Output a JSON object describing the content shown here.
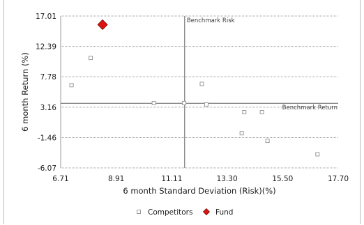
{
  "chart_data": {
    "type": "scatter",
    "title": "",
    "xlabel": "6 month Standard Deviation (Risk)(%)",
    "ylabel": "6 month Return (%)",
    "xlim": [
      6.71,
      17.7
    ],
    "ylim": [
      -6.07,
      17.01
    ],
    "x_ticks": [
      "6.71",
      "8.91",
      "11.11",
      "13.30",
      "15.50",
      "17.70"
    ],
    "y_ticks": [
      "17.01",
      "12.39",
      "7.78",
      "3.16",
      "-1.46",
      "-6.07"
    ],
    "x_tick_values": [
      6.71,
      8.91,
      11.11,
      13.3,
      15.5,
      17.7
    ],
    "y_tick_values": [
      17.01,
      12.39,
      7.78,
      3.16,
      -1.46,
      -6.07
    ],
    "grid": "horizontal dotted",
    "reference_lines": {
      "benchmark_risk": {
        "label": "Benchmark Risk",
        "x": 11.62
      },
      "benchmark_return": {
        "label": "Benchmark Return",
        "y": 3.75
      }
    },
    "series": [
      {
        "name": "Competitors",
        "marker": "square",
        "color": "#9a9a9a",
        "points": [
          {
            "x": 7.9,
            "y": 10.65
          },
          {
            "x": 7.14,
            "y": 6.5
          },
          {
            "x": 10.4,
            "y": 3.78
          },
          {
            "x": 11.6,
            "y": 3.78
          },
          {
            "x": 12.3,
            "y": 6.7
          },
          {
            "x": 12.48,
            "y": 3.58
          },
          {
            "x": 13.98,
            "y": 2.4
          },
          {
            "x": 14.68,
            "y": 2.4
          },
          {
            "x": 13.88,
            "y": -0.8
          },
          {
            "x": 14.9,
            "y": -1.95
          },
          {
            "x": 16.88,
            "y": -4.0
          }
        ]
      },
      {
        "name": "Fund",
        "marker": "diamond",
        "color": "#e0140f",
        "points": [
          {
            "x": 8.37,
            "y": 15.7
          }
        ]
      }
    ],
    "legend": {
      "position": "bottom",
      "items": [
        {
          "label": "Competitors",
          "marker": "square",
          "color": "#9a9a9a"
        },
        {
          "label": "Fund",
          "marker": "diamond",
          "color": "#e0140f"
        }
      ]
    }
  }
}
